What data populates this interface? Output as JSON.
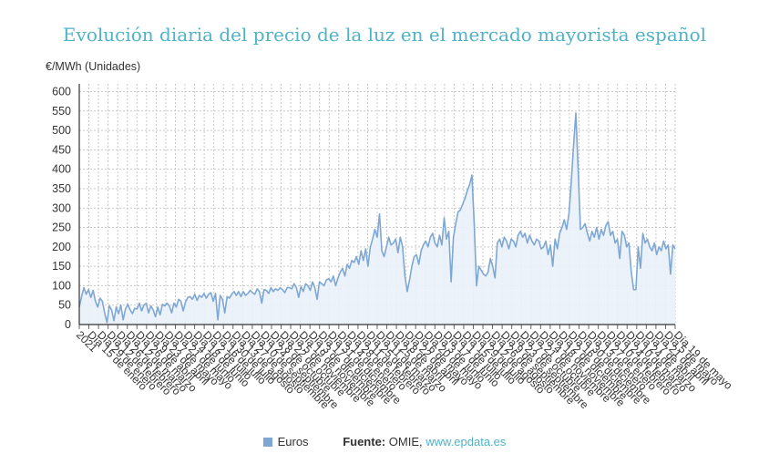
{
  "header": {
    "title": "Evolución diaria del precio de la luz en el mercado mayorista español",
    "unit": "€/MWh (Unidades)"
  },
  "legend": {
    "series_name": "Euros",
    "color": "#7fa7d4"
  },
  "source": {
    "label": "Fuente:",
    "text": "OMIE,",
    "link": "www.epdata.es"
  },
  "chart_data": {
    "type": "area",
    "ylabel": "€/MWh (Unidades)",
    "ylim": [
      0,
      620
    ],
    "yticks": [
      0,
      50,
      100,
      150,
      200,
      250,
      300,
      350,
      400,
      450,
      500,
      550,
      600
    ],
    "grid": true,
    "legend_position": "bottom",
    "year_label": "2021",
    "x_tick_labels": [
      "Día 15 de enero",
      "Día 29 de enero",
      "Día 12 de febrero",
      "Día 26 de febrero",
      "Día 12 de marzo",
      "Día 26 de marzo",
      "Día 9 de abril",
      "Día 23 de abril",
      "Día 7 de mayo",
      "Día 21 de mayo",
      "Día 4 de junio",
      "Día 18 de junio",
      "Día 2 de julio",
      "Día 16 de julio",
      "Día 30 de julio",
      "Día 13 de agosto",
      "Día 27 de agosto",
      "Día 10 de septiembre",
      "Día 24 de septiembre",
      "Día 8 de octubre",
      "Día 22 de octubre",
      "Día 5 de noviembre",
      "Día 19 de noviembre",
      "Día 3 de diciembre",
      "Día 17 de diciembre",
      "Día 31 de diciembre",
      "Día 14 de enero",
      "Día 28 de enero",
      "Día 11 de febrero",
      "Día 25 de febrero",
      "Día 11 de marzo",
      "Día 25 de marzo",
      "Día 8 de abril",
      "Día 22 de abril",
      "Día 6 de mayo",
      "Día 20 de mayo",
      "Día 3 de junio",
      "Día 17 de junio",
      "Día 1 de julio",
      "Día 15 de julio",
      "Día 29 de julio",
      "Día 12 de agosto",
      "Día 26 de agosto",
      "Día 9 de septiembre",
      "Día 23 de septiembre",
      "Día 7 de octubre",
      "Día 21 de octubre",
      "Día 4 de noviembre",
      "Día 18 de noviembre",
      "Día 2 de diciembre",
      "Día 16 de diciembre",
      "Día 30 de diciembre",
      "Día 13 de enero",
      "Día 27 de enero",
      "Día 10 de febrero",
      "Día 24 de febrero",
      "Día 10 de marzo",
      "Día 24 de marzo",
      "Día 7 de abril",
      "Día 21 de abril",
      "Día 5 de mayo",
      "Día 19 de mayo"
    ],
    "x_tick_labels_shown": [
      "Día 15 de enero",
      "Día 29 de enero",
      "Día 12 de febrero",
      "Día 26 de febrero",
      "Día 12 de marzo",
      "Día 26 de marzo",
      "Día 9 de abril",
      "Día 23 de abril",
      "Día 7 de mayo",
      "Día 21 de mayo",
      "Día 4 de junio",
      "Día 18 de junio",
      "Día 2 de julio",
      "Día 16 de julio",
      "Día 30 de julio",
      "Día 13 de agosto",
      "Día 27 de agosto",
      "Día 10 de septiembre",
      "Día 24 de septiembre",
      "Día 8 de octubre",
      "Día 22 de octubre",
      "Día 5 de noviembre",
      "Día 19 de noviembre",
      "Día 3 de diciembre",
      "Día 17 de diciembre",
      "Día 31 de diciembre",
      "Día 14 de enero",
      "Día 28 de enero",
      "Día 11 de febrero",
      "Día 25 de febrero",
      "Día 11 de marzo",
      "Día 25 de marzo",
      "Día 8 de abril",
      "Día 22 de abril",
      "Día 6 de mayo",
      "Día 20 de mayo",
      "Día 3 de junio",
      "Día 17 de junio",
      "Día 1 de julio",
      "Día 15 de julio",
      "Día 29 de julio",
      "Día 12 de agosto",
      "Día 26 de agosto",
      "Día 9 de septiembre",
      "Día 23 de septiembre",
      "Día 7 de octubre",
      "Día 21 de octubre",
      "Día 4 de noviembre",
      "Día 18 de noviembre",
      "Día 2 de diciembre",
      "Día 16 de diciembre",
      "Día 30 de diciembre",
      "Día 13 de enero",
      "Día 27 de enero",
      "Día 10 de febrero",
      "Día 24 de febrero",
      "Día 10 de marzo",
      "Día 24 de marzo",
      "Día 7 de abril",
      "Día 21 de abril",
      "Día 5 de mayo",
      "Día 19 de mayo"
    ],
    "series": [
      {
        "name": "Euros",
        "values": [
          45,
          72,
          95,
          78,
          90,
          70,
          88,
          60,
          45,
          68,
          60,
          30,
          5,
          48,
          38,
          10,
          45,
          28,
          50,
          12,
          40,
          52,
          38,
          28,
          42,
          40,
          55,
          35,
          50,
          55,
          30,
          48,
          38,
          20,
          45,
          25,
          52,
          48,
          55,
          48,
          30,
          55,
          45,
          65,
          60,
          35,
          58,
          70,
          72,
          65,
          78,
          62,
          75,
          70,
          80,
          68,
          78,
          82,
          60,
          80,
          12,
          75,
          65,
          30,
          72,
          68,
          78,
          85,
          75,
          85,
          72,
          85,
          75,
          80,
          88,
          82,
          78,
          92,
          85,
          55,
          90,
          88,
          80,
          95,
          85,
          92,
          88,
          95,
          90,
          82,
          95,
          95,
          92,
          105,
          95,
          70,
          98,
          85,
          105,
          100,
          88,
          110,
          95,
          65,
          110,
          105,
          100,
          115,
          118,
          110,
          125,
          100,
          120,
          135,
          145,
          125,
          155,
          145,
          165,
          160,
          175,
          155,
          190,
          165,
          195,
          150,
          200,
          220,
          245,
          225,
          285,
          190,
          175,
          200,
          225,
          205,
          210,
          220,
          185,
          225,
          200,
          125,
          85,
          115,
          150,
          175,
          180,
          155,
          190,
          205,
          215,
          200,
          225,
          235,
          210,
          200,
          230,
          205,
          275,
          220,
          240,
          110,
          225,
          260,
          290,
          295,
          310,
          325,
          345,
          360,
          385,
          260,
          100,
          150,
          140,
          130,
          125,
          135,
          170,
          150,
          120,
          210,
          220,
          200,
          225,
          215,
          195,
          220,
          215,
          200,
          230,
          240,
          225,
          235,
          210,
          230,
          215,
          205,
          220,
          215,
          195,
          200,
          215,
          180,
          205,
          150,
          220,
          195,
          235,
          250,
          270,
          245,
          285,
          365,
          460,
          545,
          400,
          245,
          250,
          260,
          235,
          215,
          240,
          225,
          250,
          220,
          245,
          230,
          255,
          265,
          230,
          240,
          210,
          220,
          170,
          240,
          230,
          200,
          210,
          135,
          90,
          90,
          200,
          145,
          235,
          210,
          220,
          200,
          190,
          210,
          180,
          200,
          190,
          215,
          195,
          205,
          130,
          205,
          195
        ]
      }
    ]
  }
}
